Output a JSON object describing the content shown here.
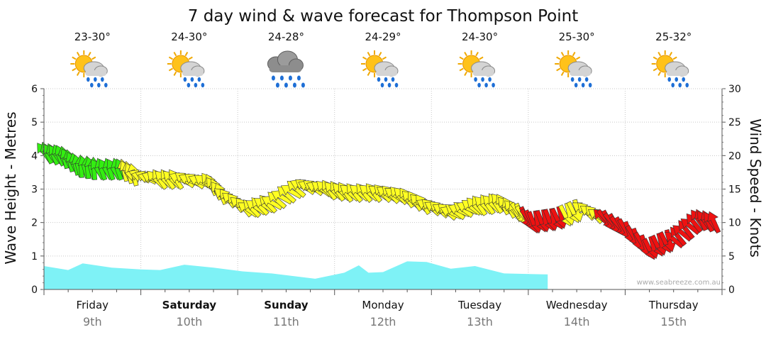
{
  "chart_data": {
    "type": "line",
    "title": "7 day wind & wave forecast for Thompson Point",
    "y_left_label": "Wave Height - Metres",
    "y_right_label": "Wind Speed - Knots",
    "y_left_ticks": [
      "0",
      "1",
      "2",
      "3",
      "4",
      "5",
      "6"
    ],
    "y_right_ticks": [
      "0",
      "5",
      "10",
      "15",
      "20",
      "25",
      "30"
    ],
    "y_left_range": [
      0,
      6
    ],
    "y_right_range": [
      0,
      30
    ],
    "grid": true,
    "days": [
      {
        "day": "Friday",
        "date": "9th",
        "temp": "23-30°",
        "icon": "sun-cloud-rain-icon",
        "bold": false
      },
      {
        "day": "Saturday",
        "date": "10th",
        "temp": "24-30°",
        "icon": "sun-cloud-rain-icon",
        "bold": true
      },
      {
        "day": "Sunday",
        "date": "11th",
        "temp": "24-28°",
        "icon": "cloud-rain-icon",
        "bold": true
      },
      {
        "day": "Monday",
        "date": "12th",
        "temp": "24-29°",
        "icon": "sun-cloud-rain-icon",
        "bold": false
      },
      {
        "day": "Tuesday",
        "date": "13th",
        "temp": "24-30°",
        "icon": "sun-cloud-rain-icon",
        "bold": false
      },
      {
        "day": "Wednesday",
        "date": "14th",
        "temp": "25-30°",
        "icon": "sun-cloud-rain-icon",
        "bold": false
      },
      {
        "day": "Thursday",
        "date": "15th",
        "temp": "25-32°",
        "icon": "sun-cloud-rain-icon",
        "bold": false
      }
    ],
    "wave_series": {
      "name": "Wave Height",
      "unit": "m",
      "color": "#7ef2f6",
      "x_days": [
        0.0,
        0.25,
        0.4,
        0.7,
        1.0,
        1.2,
        1.45,
        1.75,
        2.05,
        2.35,
        2.8,
        3.1,
        3.25,
        3.35,
        3.5,
        3.75,
        3.95,
        4.2,
        4.45,
        4.75,
        5.2
      ],
      "values": [
        0.7,
        0.58,
        0.78,
        0.65,
        0.6,
        0.58,
        0.74,
        0.65,
        0.54,
        0.48,
        0.32,
        0.5,
        0.72,
        0.5,
        0.52,
        0.84,
        0.82,
        0.62,
        0.7,
        0.48,
        0.45
      ]
    },
    "wind_series": {
      "name": "Wind Speed",
      "unit": "knots",
      "x_days": [
        0.0,
        0.18,
        0.35,
        0.55,
        0.8,
        0.95,
        1.15,
        1.4,
        1.7,
        1.85,
        2.1,
        2.35,
        2.65,
        2.9,
        3.15,
        3.45,
        3.7,
        3.95,
        4.2,
        4.45,
        4.7,
        4.9,
        5.05,
        5.3,
        5.55,
        5.8,
        6.0,
        6.25,
        6.5,
        6.75,
        6.95
      ],
      "speeds": [
        20.5,
        20.0,
        18.5,
        18.0,
        18.0,
        17.0,
        16.5,
        16.5,
        16.0,
        14.0,
        12.0,
        13.0,
        15.5,
        15.0,
        14.5,
        14.5,
        14.0,
        12.5,
        11.5,
        12.5,
        13.0,
        11.5,
        10.0,
        10.5,
        12.0,
        10.5,
        9.0,
        6.0,
        7.5,
        10.5,
        10.0
      ],
      "directions_deg": [
        240,
        250,
        260,
        245,
        250,
        200,
        230,
        210,
        240,
        225,
        220,
        215,
        210,
        230,
        225,
        220,
        230,
        215,
        210,
        230,
        235,
        60,
        75,
        70,
        220,
        55,
        65,
        70,
        225,
        240,
        235
      ],
      "speed_color_scale": [
        {
          "min": 0,
          "max": 11,
          "color": "#ee1111"
        },
        {
          "min": 11,
          "max": 18,
          "color": "#ffff22"
        },
        {
          "min": 18,
          "max": 30,
          "color": "#33ee11"
        }
      ]
    },
    "credit": "www.seabreeze.com.au"
  }
}
